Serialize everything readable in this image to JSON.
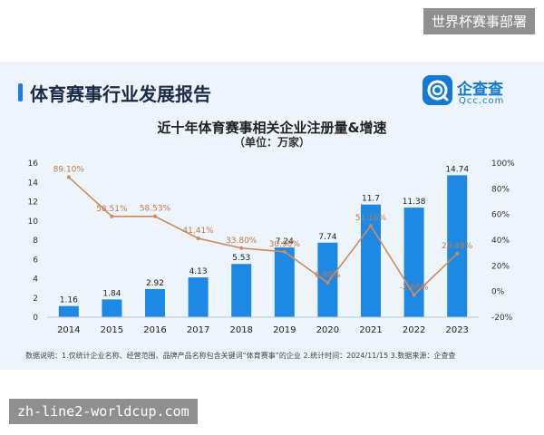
{
  "top_tag": "世界杯赛事部署",
  "bottom_tag": "zh-line2-worldcup.com",
  "header": {
    "title": "体育赛事行业发展报告"
  },
  "logo": {
    "cn": "企查查",
    "en": "Qcc.com"
  },
  "note": "数据说明：1.仅统计企业名称、经营范围、品牌产品名称包含关键词“体育赛事”的企业  2.统计时间：2024/11/15  3.数据来源：企查查",
  "colors": {
    "bar": "#1e88e5",
    "line": "#d08a5a",
    "accent": "#1478d4"
  },
  "chart_data": {
    "type": "bar+line",
    "title": "近十年体育赛事相关企业注册量&增速",
    "subtitle": "（单位：万家）",
    "categories": [
      "2014",
      "2015",
      "2016",
      "2017",
      "2018",
      "2019",
      "2020",
      "2021",
      "2022",
      "2023"
    ],
    "series": [
      {
        "type": "bar",
        "axis": "left",
        "values": [
          1.16,
          1.84,
          2.92,
          4.13,
          5.53,
          7.24,
          7.74,
          11.7,
          11.38,
          14.74
        ],
        "labels": [
          "1.16",
          "1.84",
          "2.92",
          "4.13",
          "5.53",
          "7.24",
          "7.74",
          "11.7",
          "11.38",
          "14.74"
        ]
      },
      {
        "type": "line",
        "axis": "right",
        "values": [
          89.1,
          58.51,
          58.53,
          41.41,
          33.8,
          30.98,
          6.89,
          51.16,
          -2.68,
          29.48
        ],
        "labels": [
          "89.10%",
          "58.51%",
          "58.53%",
          "41.41%",
          "33.80%",
          "30.98%",
          "6.89%",
          "51.16%",
          "-2.68%",
          "29.48%"
        ]
      }
    ],
    "y_left": {
      "min": 0,
      "max": 16,
      "ticks": [
        "0",
        "2",
        "4",
        "6",
        "8",
        "10",
        "12",
        "14",
        "16"
      ]
    },
    "y_right": {
      "min": -20,
      "max": 100,
      "ticks": [
        "-20%",
        "0%",
        "20%",
        "40%",
        "60%",
        "80%",
        "100%"
      ]
    },
    "grid": false,
    "legend": "none"
  }
}
